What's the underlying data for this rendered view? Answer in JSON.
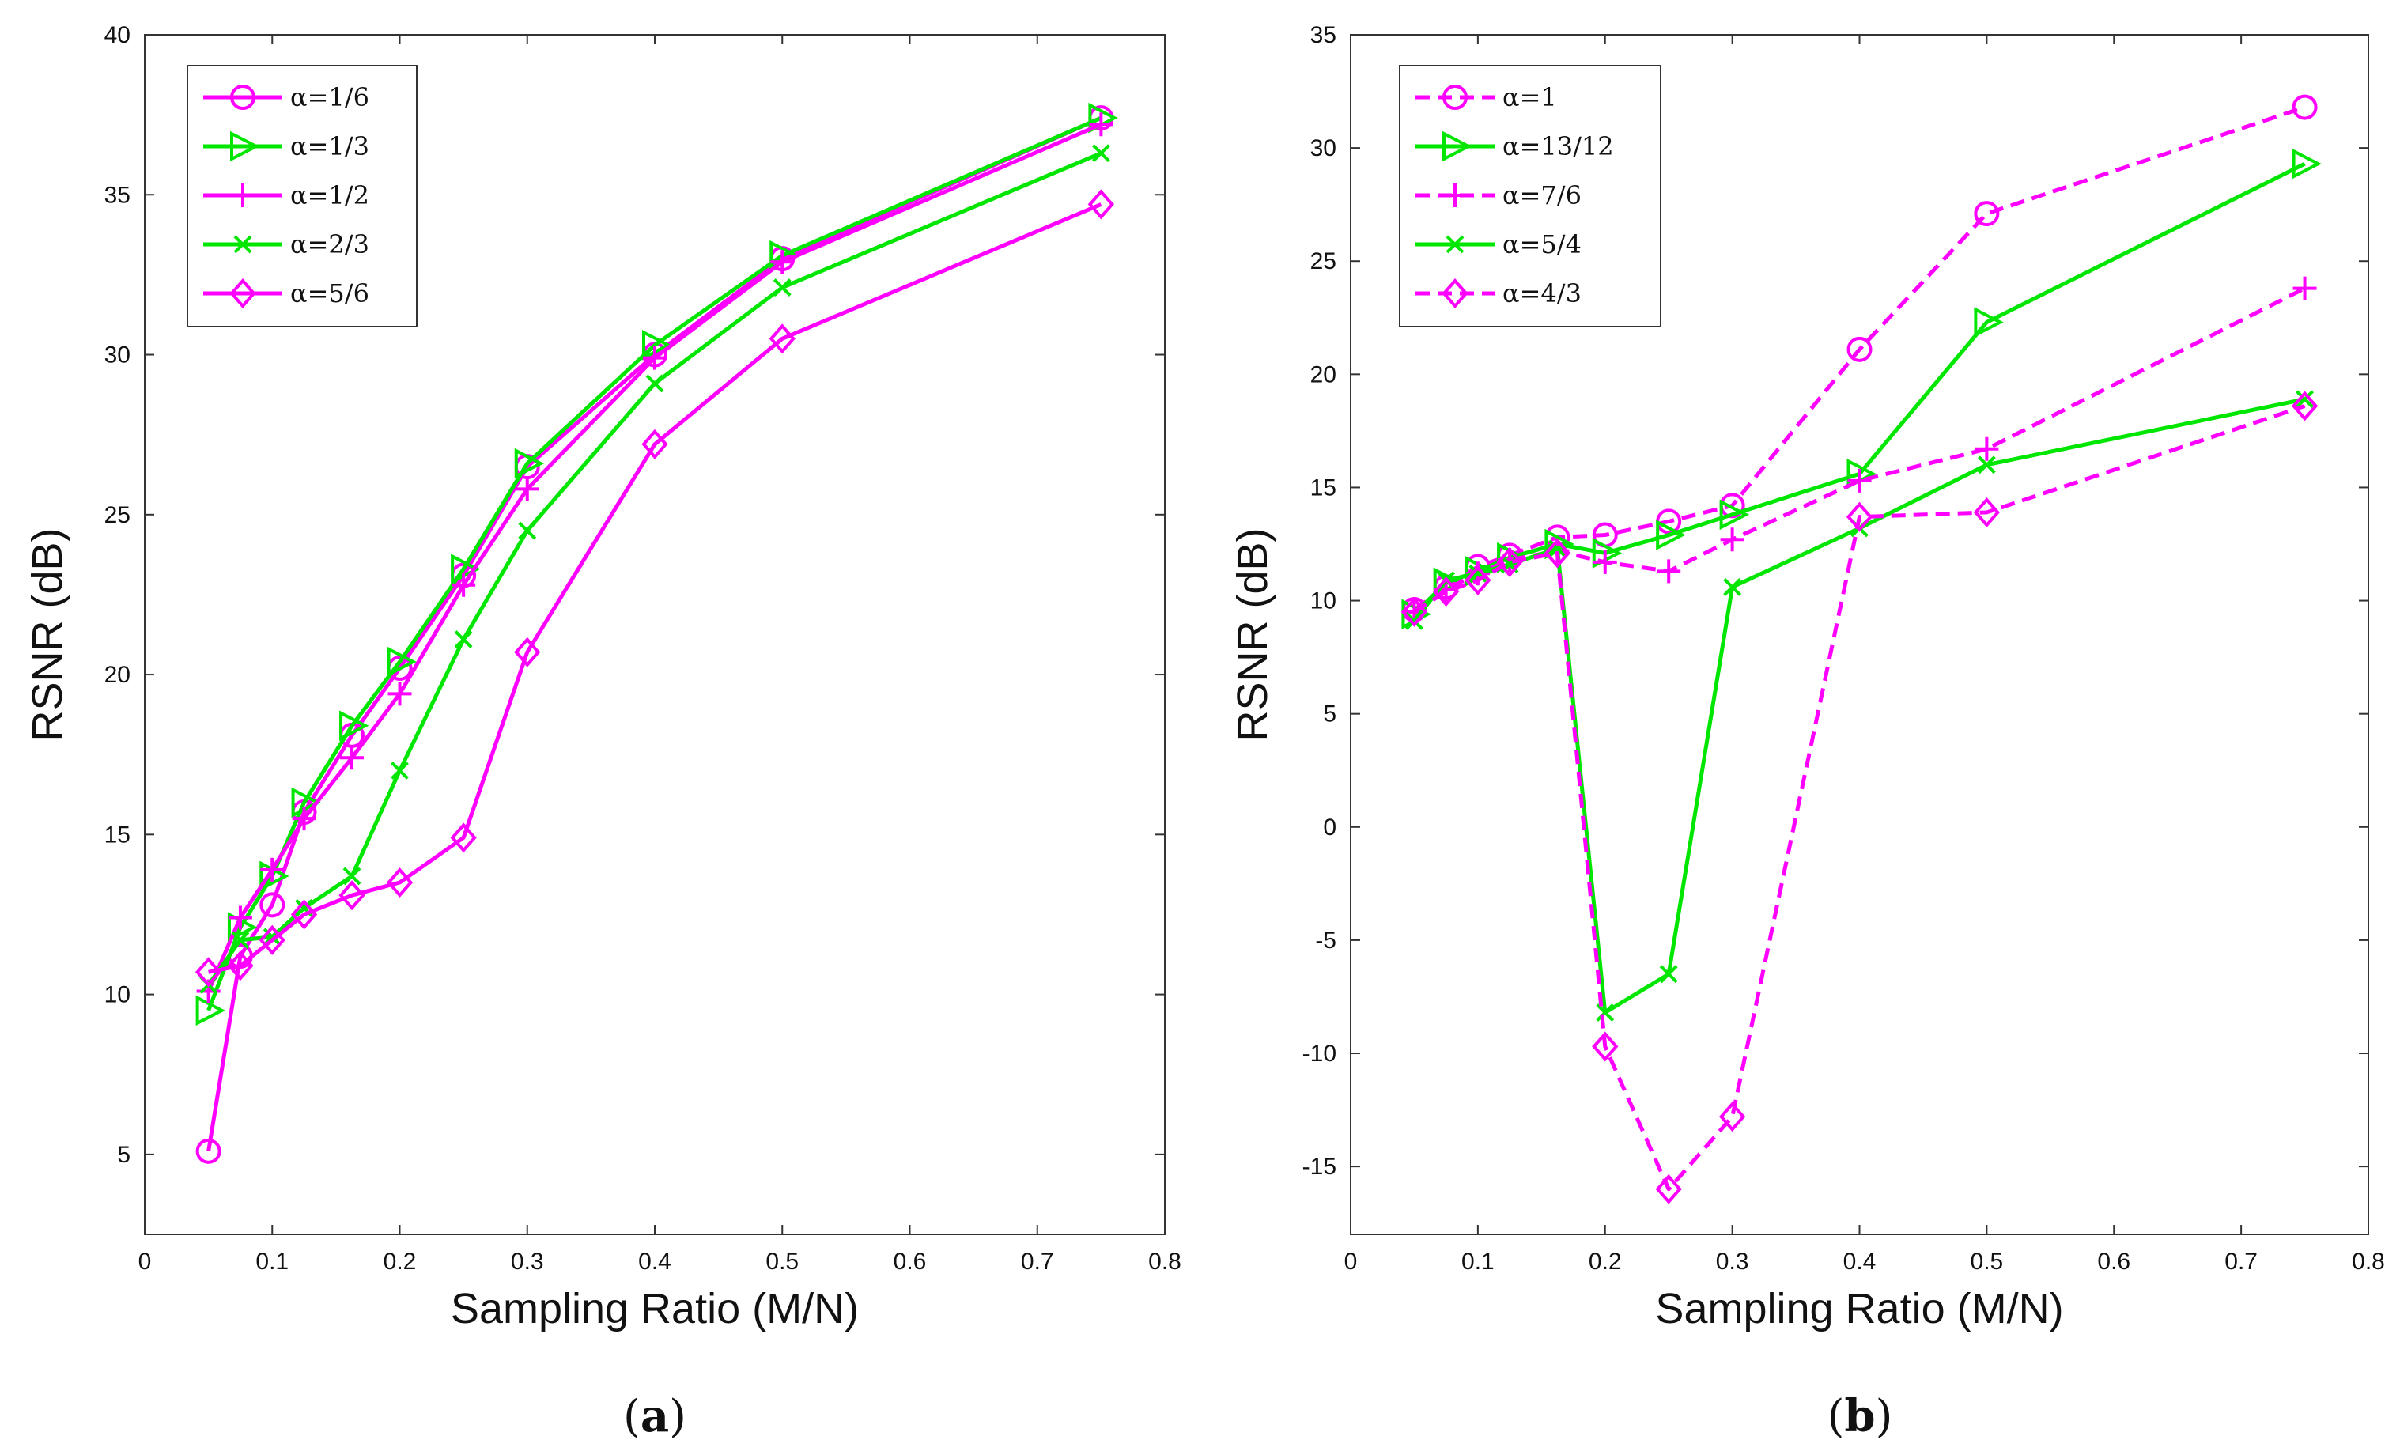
{
  "colors": {
    "magenta": "#ff00ff",
    "green": "#00e600",
    "axis": "#333333"
  },
  "chart_data": [
    {
      "type": "line",
      "caption": "a",
      "xlabel": "Sampling Ratio (M/N)",
      "ylabel": "RSNR (dB)",
      "xlim": [
        0,
        0.8
      ],
      "ylim": [
        2.5,
        40
      ],
      "xticks": [
        "0",
        "0.1",
        "0.2",
        "0.3",
        "0.4",
        "0.5",
        "0.6",
        "0.7",
        "0.8"
      ],
      "yticks": [
        "5",
        "10",
        "15",
        "20",
        "25",
        "30",
        "35",
        "40"
      ],
      "legend_position": "top-left",
      "series": [
        {
          "name": "α=1/6",
          "color": "magenta",
          "dashed": false,
          "marker": "circle",
          "x": [
            0.05,
            0.075,
            0.1,
            0.125,
            0.1625,
            0.2,
            0.25,
            0.3,
            0.4,
            0.5,
            0.75
          ],
          "y": [
            5.1,
            11.2,
            12.8,
            15.7,
            18.1,
            20.2,
            23.1,
            26.5,
            30.0,
            33.0,
            37.4
          ]
        },
        {
          "name": "α=1/3",
          "color": "green",
          "dashed": false,
          "marker": "triangle-right",
          "x": [
            0.05,
            0.075,
            0.1,
            0.125,
            0.1625,
            0.2,
            0.25,
            0.3,
            0.4,
            0.5,
            0.75
          ],
          "y": [
            9.5,
            12.1,
            13.7,
            16.0,
            18.4,
            20.4,
            23.3,
            26.6,
            30.3,
            33.1,
            37.4
          ]
        },
        {
          "name": "α=1/2",
          "color": "magenta",
          "dashed": false,
          "marker": "plus",
          "x": [
            0.05,
            0.075,
            0.1,
            0.125,
            0.1625,
            0.2,
            0.25,
            0.3,
            0.4,
            0.5,
            0.75
          ],
          "y": [
            10.1,
            12.4,
            13.9,
            15.5,
            17.4,
            19.4,
            22.8,
            25.8,
            29.9,
            32.9,
            37.2
          ]
        },
        {
          "name": "α=2/3",
          "color": "green",
          "dashed": false,
          "marker": "x",
          "x": [
            0.05,
            0.075,
            0.1,
            0.125,
            0.1625,
            0.2,
            0.25,
            0.3,
            0.4,
            0.5,
            0.75
          ],
          "y": [
            10.3,
            11.7,
            11.8,
            12.7,
            13.7,
            17.0,
            21.1,
            24.5,
            29.1,
            32.1,
            36.3
          ]
        },
        {
          "name": "α=5/6",
          "color": "magenta",
          "dashed": false,
          "marker": "diamond",
          "x": [
            0.05,
            0.075,
            0.1,
            0.125,
            0.1625,
            0.2,
            0.25,
            0.3,
            0.4,
            0.5,
            0.75
          ],
          "y": [
            10.7,
            10.9,
            11.7,
            12.5,
            13.1,
            13.5,
            14.9,
            20.7,
            27.2,
            30.5,
            34.7
          ]
        }
      ]
    },
    {
      "type": "line",
      "caption": "b",
      "xlabel": "Sampling Ratio (M/N)",
      "ylabel": "RSNR (dB)",
      "xlim": [
        0,
        0.8
      ],
      "ylim": [
        -18,
        35
      ],
      "xticks": [
        "0",
        "0.1",
        "0.2",
        "0.3",
        "0.4",
        "0.5",
        "0.6",
        "0.7",
        "0.8"
      ],
      "yticks": [
        "-15",
        "-10",
        "-5",
        "0",
        "5",
        "10",
        "15",
        "20",
        "25",
        "30",
        "35"
      ],
      "legend_position": "top-left",
      "series": [
        {
          "name": "α=1",
          "color": "magenta",
          "dashed": true,
          "marker": "circle",
          "x": [
            0.05,
            0.075,
            0.1,
            0.125,
            0.1625,
            0.2,
            0.25,
            0.3,
            0.4,
            0.5,
            0.75
          ],
          "y": [
            9.6,
            10.6,
            11.5,
            12.0,
            12.8,
            12.9,
            13.5,
            14.2,
            21.1,
            27.1,
            31.8
          ]
        },
        {
          "name": "α=13/12",
          "color": "green",
          "dashed": false,
          "marker": "triangle-right",
          "x": [
            0.05,
            0.075,
            0.1,
            0.125,
            0.1625,
            0.2,
            0.25,
            0.3,
            0.4,
            0.5,
            0.75
          ],
          "y": [
            9.4,
            10.8,
            11.3,
            11.9,
            12.5,
            12.1,
            12.9,
            13.8,
            15.6,
            22.3,
            29.3
          ]
        },
        {
          "name": "α=7/6",
          "color": "magenta",
          "dashed": true,
          "marker": "plus",
          "x": [
            0.05,
            0.075,
            0.1,
            0.125,
            0.1625,
            0.2,
            0.25,
            0.3,
            0.4,
            0.5,
            0.75
          ],
          "y": [
            9.5,
            10.5,
            11.2,
            11.8,
            12.2,
            11.7,
            11.3,
            12.7,
            15.3,
            16.7,
            23.8
          ]
        },
        {
          "name": "α=5/4",
          "color": "green",
          "dashed": false,
          "marker": "x",
          "x": [
            0.05,
            0.075,
            0.1,
            0.125,
            0.1625,
            0.2,
            0.25,
            0.3,
            0.4,
            0.5,
            0.75
          ],
          "y": [
            9.1,
            10.9,
            11.2,
            11.6,
            12.3,
            -8.2,
            -6.5,
            10.6,
            13.2,
            16.0,
            18.9
          ]
        },
        {
          "name": "α=4/3",
          "color": "magenta",
          "dashed": true,
          "marker": "diamond",
          "x": [
            0.05,
            0.075,
            0.1,
            0.125,
            0.1625,
            0.2,
            0.25,
            0.3,
            0.4,
            0.5,
            0.75
          ],
          "y": [
            9.5,
            10.4,
            10.9,
            11.7,
            12.1,
            -9.7,
            -16.0,
            -12.8,
            13.7,
            13.9,
            18.6
          ]
        }
      ]
    }
  ]
}
